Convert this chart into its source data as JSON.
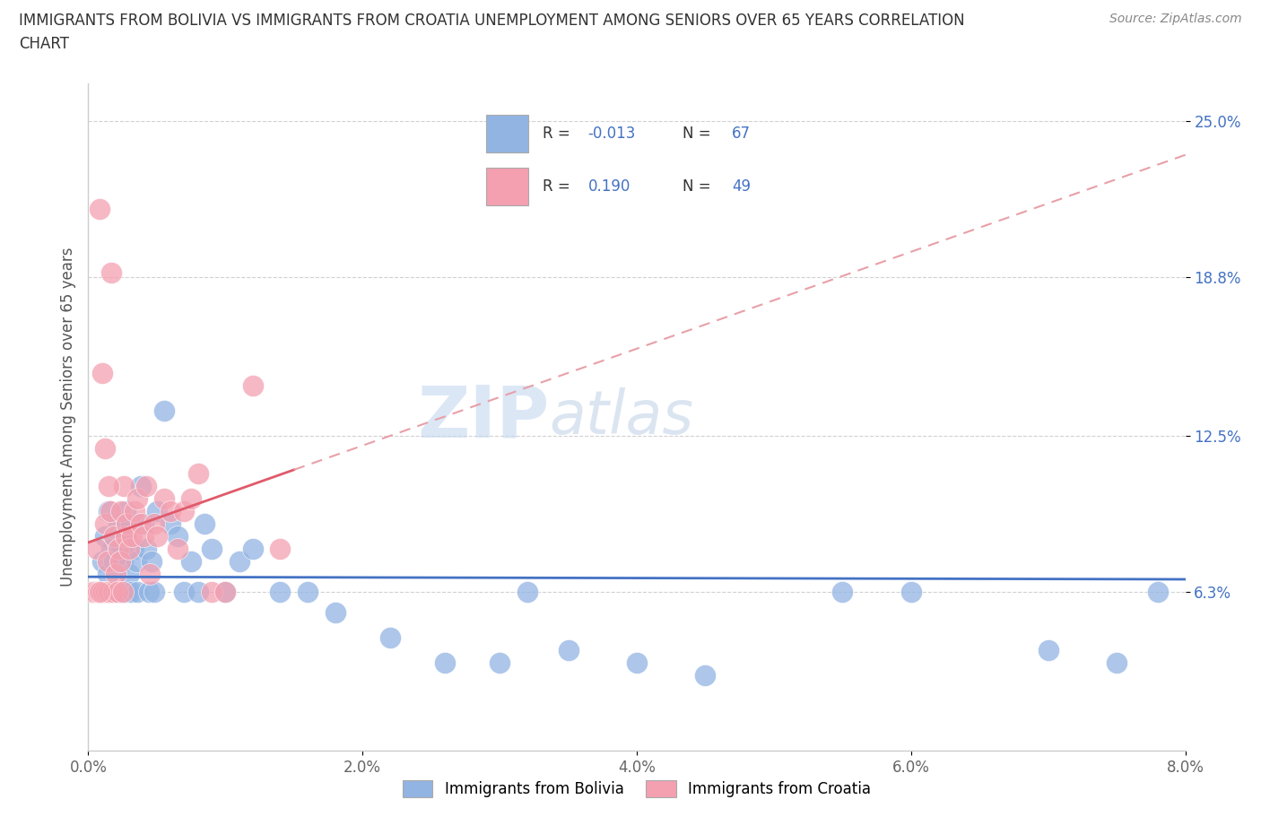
{
  "title_line1": "IMMIGRANTS FROM BOLIVIA VS IMMIGRANTS FROM CROATIA UNEMPLOYMENT AMONG SENIORS OVER 65 YEARS CORRELATION",
  "title_line2": "CHART",
  "source": "Source: ZipAtlas.com",
  "ylabel": "Unemployment Among Seniors over 65 years",
  "xlim": [
    0.0,
    8.0
  ],
  "ylim": [
    0.0,
    26.5
  ],
  "xticks": [
    0.0,
    2.0,
    4.0,
    6.0,
    8.0
  ],
  "xticklabels": [
    "0.0%",
    "2.0%",
    "4.0%",
    "6.0%",
    "8.0%"
  ],
  "ytick_positions": [
    6.3,
    12.5,
    18.8,
    25.0
  ],
  "yticklabels": [
    "6.3%",
    "12.5%",
    "18.8%",
    "25.0%"
  ],
  "bolivia_color": "#92b4e3",
  "croatia_color": "#f4a0b0",
  "bolivia_R": -0.013,
  "bolivia_N": 67,
  "croatia_R": 0.19,
  "croatia_N": 49,
  "trend_bolivia_color": "#4472c4",
  "trend_croatia_solid_color": "#e05a6a",
  "trend_croatia_dash_color": "#e8a0a8",
  "watermark_zip": "ZIP",
  "watermark_atlas": "atlas",
  "legend_label_bolivia": "Immigrants from Bolivia",
  "legend_label_croatia": "Immigrants from Croatia",
  "bolivia_x": [
    0.03,
    0.05,
    0.06,
    0.07,
    0.08,
    0.09,
    0.1,
    0.1,
    0.11,
    0.12,
    0.13,
    0.14,
    0.15,
    0.15,
    0.16,
    0.17,
    0.18,
    0.19,
    0.2,
    0.21,
    0.22,
    0.23,
    0.24,
    0.25,
    0.26,
    0.27,
    0.28,
    0.29,
    0.3,
    0.31,
    0.32,
    0.33,
    0.35,
    0.36,
    0.38,
    0.4,
    0.42,
    0.44,
    0.46,
    0.48,
    0.5,
    0.55,
    0.6,
    0.65,
    0.7,
    0.75,
    0.8,
    0.85,
    0.9,
    1.0,
    1.1,
    1.2,
    1.4,
    1.6,
    1.8,
    2.2,
    2.6,
    3.0,
    3.5,
    4.0,
    4.5,
    5.5,
    6.0,
    7.0,
    7.5,
    7.8,
    3.2
  ],
  "bolivia_y": [
    6.3,
    6.3,
    6.3,
    6.3,
    6.3,
    6.3,
    6.3,
    7.5,
    6.3,
    8.5,
    6.3,
    7.0,
    6.3,
    9.5,
    6.3,
    8.0,
    6.3,
    7.5,
    6.3,
    6.3,
    9.0,
    6.3,
    8.0,
    7.5,
    6.3,
    9.5,
    8.5,
    6.3,
    7.0,
    9.0,
    6.3,
    8.0,
    7.5,
    6.3,
    10.5,
    9.0,
    8.0,
    6.3,
    7.5,
    6.3,
    9.5,
    13.5,
    9.0,
    8.5,
    6.3,
    7.5,
    6.3,
    9.0,
    8.0,
    6.3,
    7.5,
    8.0,
    6.3,
    6.3,
    5.5,
    4.5,
    3.5,
    3.5,
    4.0,
    3.5,
    3.0,
    6.3,
    6.3,
    4.0,
    3.5,
    6.3,
    6.3
  ],
  "croatia_x": [
    0.03,
    0.05,
    0.06,
    0.07,
    0.08,
    0.09,
    0.1,
    0.11,
    0.12,
    0.13,
    0.14,
    0.15,
    0.16,
    0.17,
    0.18,
    0.19,
    0.2,
    0.21,
    0.22,
    0.23,
    0.24,
    0.25,
    0.26,
    0.27,
    0.28,
    0.3,
    0.32,
    0.34,
    0.36,
    0.38,
    0.4,
    0.42,
    0.45,
    0.48,
    0.5,
    0.55,
    0.6,
    0.65,
    0.7,
    0.75,
    0.8,
    0.9,
    1.0,
    1.2,
    1.4,
    0.1,
    0.08,
    0.12,
    0.15
  ],
  "croatia_y": [
    6.3,
    6.3,
    8.0,
    6.3,
    21.5,
    6.3,
    6.3,
    6.3,
    9.0,
    6.3,
    7.5,
    6.3,
    9.5,
    19.0,
    6.3,
    8.5,
    7.0,
    6.3,
    8.0,
    7.5,
    9.5,
    6.3,
    10.5,
    8.5,
    9.0,
    8.0,
    8.5,
    9.5,
    10.0,
    9.0,
    8.5,
    10.5,
    7.0,
    9.0,
    8.5,
    10.0,
    9.5,
    8.0,
    9.5,
    10.0,
    11.0,
    6.3,
    6.3,
    14.5,
    8.0,
    15.0,
    6.3,
    12.0,
    10.5
  ]
}
